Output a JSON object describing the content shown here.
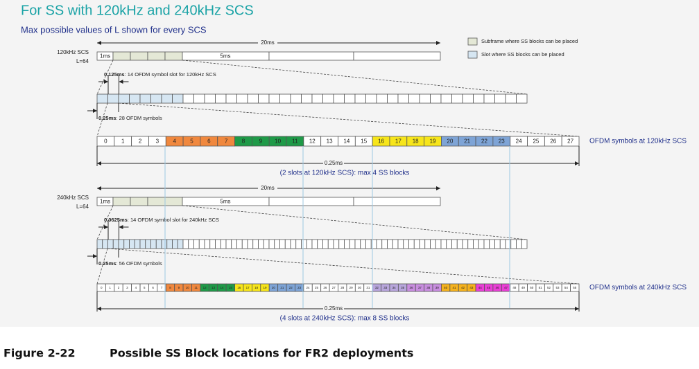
{
  "header": {
    "title": "For SS with 120kHz and 240kHz SCS",
    "subtitle": "Max possible values of L shown for every SCS"
  },
  "legend": [
    {
      "label": "Subframe where SS blocks can be placed",
      "color": "#e4e8d6"
    },
    {
      "label": "Slot where SS blocks can be placed",
      "color": "#d6e6f2"
    }
  ],
  "sections": [
    {
      "scs_label": "120kHz SCS",
      "l_label": "L=64",
      "frame_label": "20ms",
      "first_subframe_label": "1ms",
      "half_frame_label": "5ms",
      "slot_duration": "0.125ms",
      "slot_note": ": 14 OFDM symbol slot for 120kHz SCS",
      "span_duration": "0.25ms",
      "span_note": ": 28 OFDM symbols",
      "symbols": [
        "0",
        "1",
        "2",
        "3",
        "4",
        "5",
        "6",
        "7",
        "8",
        "9",
        "10",
        "11",
        "12",
        "13",
        "14",
        "15",
        "16",
        "17",
        "18",
        "19",
        "20",
        "21",
        "22",
        "23",
        "24",
        "25",
        "26",
        "27"
      ],
      "symbol_colors": [
        "#fff",
        "#fff",
        "#fff",
        "#fff",
        "#f0883e",
        "#f0883e",
        "#f0883e",
        "#f0883e",
        "#1f9a48",
        "#1f9a48",
        "#1f9a48",
        "#1f9a48",
        "#fff",
        "#fff",
        "#fff",
        "#fff",
        "#f7e51a",
        "#f7e51a",
        "#f7e51a",
        "#f7e51a",
        "#7ea4d6",
        "#7ea4d6",
        "#7ea4d6",
        "#7ea4d6",
        "#fff",
        "#fff",
        "#fff",
        "#fff"
      ],
      "row_label": "OFDM symbols at 120kHz SCS",
      "bottom_duration": "0.25ms",
      "bottom_note": "(2 slots at 120kHz SCS): max 4 SS blocks"
    },
    {
      "scs_label": "240kHz SCS",
      "l_label": "L=64",
      "frame_label": "20ms",
      "first_subframe_label": "1ms",
      "half_frame_label": "5ms",
      "slot_duration": "0.0625ms",
      "slot_note": ": 14 OFDM symbol slot for 240kHz SCS",
      "span_duration": "0.25ms",
      "span_note": ": 56 OFDM symbols",
      "symbols": [
        "0",
        "1",
        "2",
        "3",
        "4",
        "5",
        "6",
        "7",
        "8",
        "9",
        "10",
        "11",
        "12",
        "13",
        "14",
        "15",
        "16",
        "17",
        "18",
        "19",
        "20",
        "21",
        "22",
        "23",
        "24",
        "25",
        "26",
        "27",
        "28",
        "29",
        "30",
        "31",
        "32",
        "33",
        "34",
        "35",
        "36",
        "37",
        "38",
        "39",
        "40",
        "41",
        "42",
        "43",
        "44",
        "45",
        "46",
        "47",
        "48",
        "49",
        "50",
        "51",
        "52",
        "53",
        "54",
        "55"
      ],
      "symbol_colors": [
        "#fff",
        "#fff",
        "#fff",
        "#fff",
        "#fff",
        "#fff",
        "#fff",
        "#fff",
        "#f0883e",
        "#f0883e",
        "#f0883e",
        "#f0883e",
        "#1f9a48",
        "#1f9a48",
        "#1f9a48",
        "#1f9a48",
        "#f7e51a",
        "#f7e51a",
        "#f7e51a",
        "#f7e51a",
        "#7ea4d6",
        "#7ea4d6",
        "#7ea4d6",
        "#7ea4d6",
        "#fff",
        "#fff",
        "#fff",
        "#fff",
        "#fff",
        "#fff",
        "#fff",
        "#fff",
        "#b8a6dc",
        "#b8a6dc",
        "#b8a6dc",
        "#b8a6dc",
        "#c98ee0",
        "#c98ee0",
        "#c98ee0",
        "#c98ee0",
        "#f5b21e",
        "#f5b21e",
        "#f5b21e",
        "#f5b21e",
        "#ea3fd6",
        "#ea3fd6",
        "#ea3fd6",
        "#ea3fd6",
        "#fff",
        "#fff",
        "#fff",
        "#fff",
        "#fff",
        "#fff",
        "#fff",
        "#fff"
      ],
      "row_label": "OFDM symbols at 240kHz SCS",
      "bottom_duration": "0.25ms",
      "bottom_note": "(4 slots at 240kHz SCS): max 8 SS blocks"
    }
  ],
  "caption": {
    "number": "Figure 2-22",
    "text": "Possible SS Block locations for FR2 deployments"
  }
}
